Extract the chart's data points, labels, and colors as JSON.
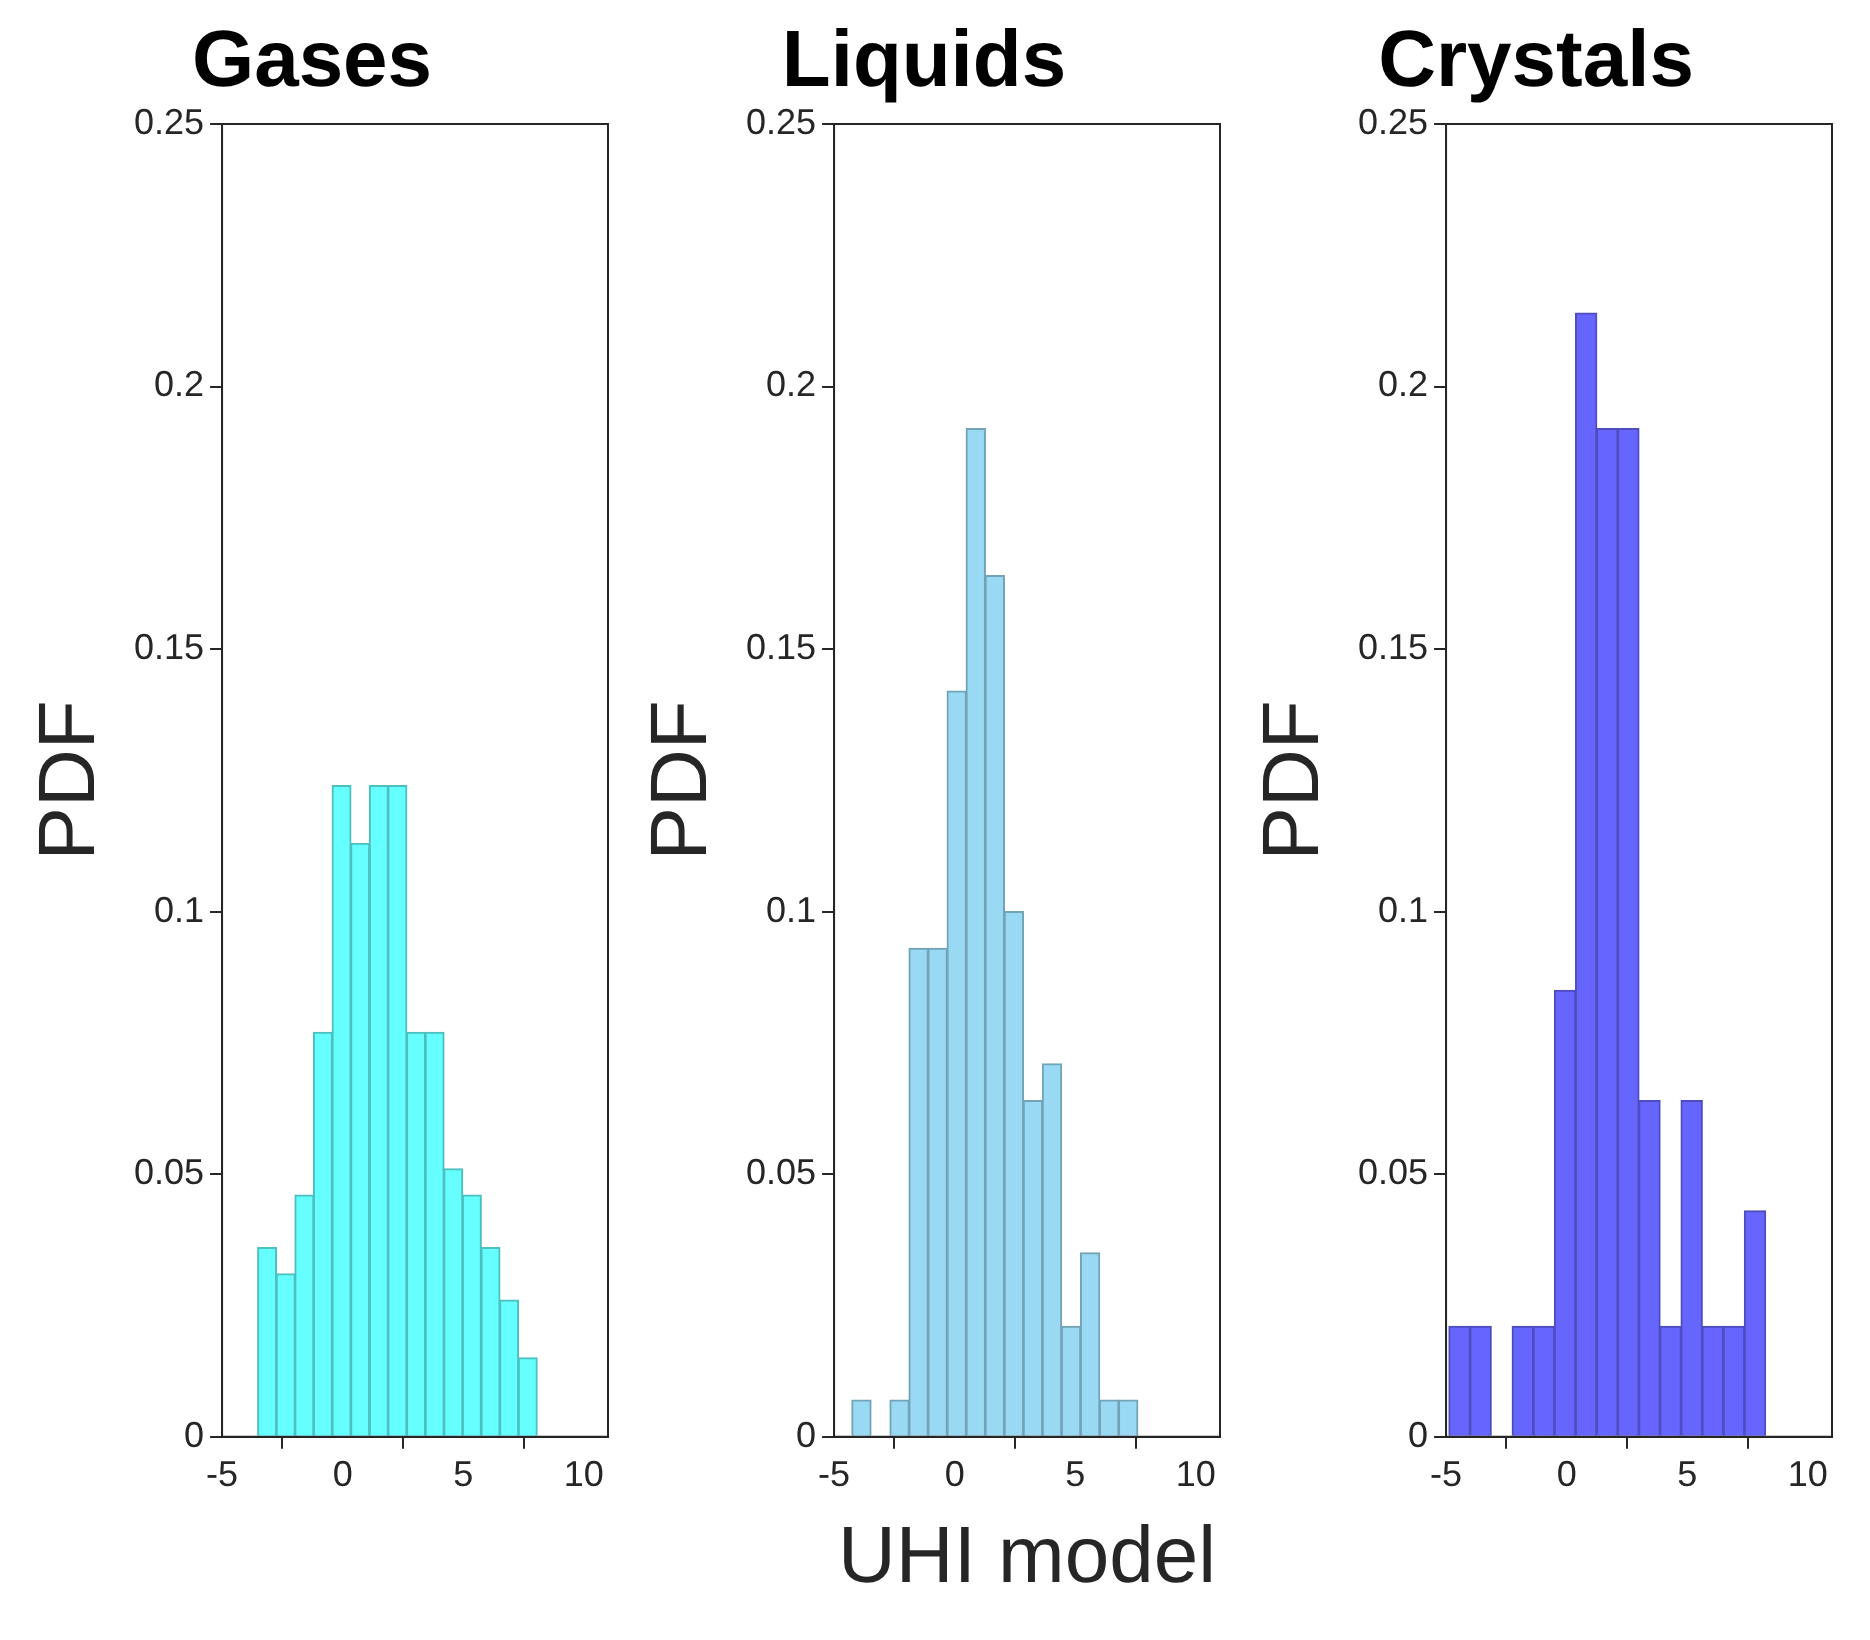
{
  "chart_data": [
    {
      "type": "histogram",
      "title": "Gases",
      "ylabel": "PDF",
      "bins": [
        -3.52,
        -2.748,
        -1.976,
        -1.204,
        -0.432,
        0.34,
        1.112,
        1.884,
        2.656,
        3.428,
        4.2,
        4.972,
        5.744,
        6.516,
        7.288,
        8.06
      ],
      "values": [
        0.036,
        0.031,
        0.046,
        0.077,
        0.124,
        0.113,
        0.124,
        0.124,
        0.077,
        0.077,
        0.051,
        0.046,
        0.036,
        0.026,
        0.015
      ],
      "color": "#66ffff",
      "xlim": [
        -5,
        11
      ],
      "xticks": [
        -5,
        0,
        5,
        10
      ],
      "ylim": [
        0,
        0.25
      ],
      "yticks": [
        0,
        0.05,
        0.1,
        0.15,
        0.2,
        0.25
      ],
      "grid": false
    },
    {
      "type": "histogram",
      "title": "Liquids",
      "ylabel": "PDF",
      "xlabel": "UHI model",
      "bins": [
        -4.26,
        -3.47,
        -2.68,
        -1.89,
        -1.1,
        -0.31,
        0.48,
        1.27,
        2.06,
        2.85,
        3.64,
        4.43,
        5.22,
        6.01,
        6.8,
        7.59
      ],
      "values": [
        0.007,
        0,
        0.007,
        0.093,
        0.093,
        0.142,
        0.192,
        0.164,
        0.1,
        0.064,
        0.071,
        0.021,
        0.035,
        0.007,
        0.007
      ],
      "color": "#99d9f3",
      "xlim": [
        -5,
        11
      ],
      "xticks": [
        -5,
        0,
        5,
        10
      ],
      "ylim": [
        0,
        0.25
      ],
      "yticks": [
        0,
        0.05,
        0.1,
        0.15,
        0.2,
        0.25
      ],
      "grid": false
    },
    {
      "type": "histogram",
      "title": "Crystals",
      "ylabel": "PDF",
      "bins": [
        -4.88,
        -4.005,
        -3.13,
        -2.255,
        -1.38,
        -0.505,
        0.37,
        1.245,
        2.12,
        2.995,
        3.87,
        4.745,
        5.62,
        6.495,
        7.37,
        8.245
      ],
      "values": [
        0.021,
        0.021,
        0,
        0.021,
        0.021,
        0.085,
        0.214,
        0.192,
        0.192,
        0.064,
        0.021,
        0.064,
        0.021,
        0.021,
        0.043
      ],
      "color": "#6666ff",
      "xlim": [
        -5,
        11
      ],
      "xticks": [
        -5,
        0,
        5,
        10
      ],
      "ylim": [
        0,
        0.25
      ],
      "yticks": [
        0,
        0.05,
        0.1,
        0.15,
        0.2,
        0.25
      ],
      "grid": false
    }
  ]
}
